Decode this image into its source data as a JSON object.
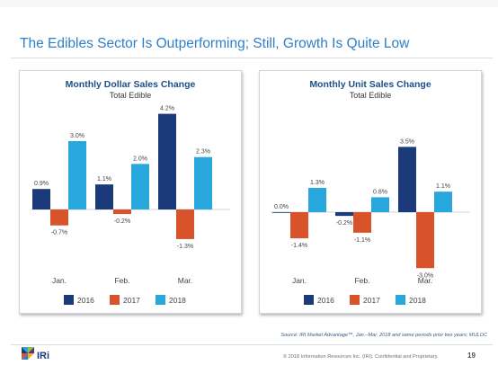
{
  "page": {
    "title": "The Edibles Sector Is Outperforming; Still, Growth Is Quite Low",
    "source": "Source: IRI Market Advantage™, Jan.–Mar. 2018 and same periods prior two years; MULOC",
    "copyright": "© 2018 Information Resources Inc. (IRI). Confidential and Proprietary.",
    "page_number": "19",
    "logo_text": "IRi"
  },
  "colors": {
    "title": "#2f7fc8",
    "chart_title": "#1b4f8a",
    "series_2016": "#1a3a7a",
    "series_2017": "#d9532a",
    "series_2018": "#27a7dc"
  },
  "chart_data": [
    {
      "type": "bar",
      "title": "Monthly Dollar Sales Change",
      "subtitle": "Total Edible",
      "categories": [
        "Jan.",
        "Feb.",
        "Mar."
      ],
      "series": [
        {
          "name": "2016",
          "values": [
            0.9,
            1.1,
            4.2
          ],
          "labels": [
            "0.9%",
            "1.1%",
            "4.2%"
          ]
        },
        {
          "name": "2017",
          "values": [
            -0.7,
            -0.2,
            -1.3
          ],
          "labels": [
            "-0.7%",
            "-0.2%",
            "-1.3%"
          ]
        },
        {
          "name": "2018",
          "values": [
            3.0,
            2.0,
            2.3
          ],
          "labels": [
            "3.0%",
            "2.0%",
            "2.3%"
          ]
        }
      ],
      "ylim": [
        -2.2,
        4.5
      ],
      "grid": false,
      "legend": "bottom"
    },
    {
      "type": "bar",
      "title": "Monthly Unit Sales Change",
      "subtitle": "Total Edible",
      "categories": [
        "Jan.",
        "Feb.",
        "Mar."
      ],
      "series": [
        {
          "name": "2016",
          "values": [
            0.0,
            -0.2,
            3.5
          ],
          "labels": [
            "0.0%",
            "-0.2%",
            "3.5%"
          ]
        },
        {
          "name": "2017",
          "values": [
            -1.4,
            -1.1,
            -3.0
          ],
          "labels": [
            "-1.4%",
            "-1.1%",
            "-3.0%"
          ]
        },
        {
          "name": "2018",
          "values": [
            1.3,
            0.8,
            1.1
          ],
          "labels": [
            "1.3%",
            "0.8%",
            "1.1%"
          ]
        }
      ],
      "ylim": [
        -3.7,
        4.0
      ],
      "grid": false,
      "legend": "bottom"
    }
  ]
}
